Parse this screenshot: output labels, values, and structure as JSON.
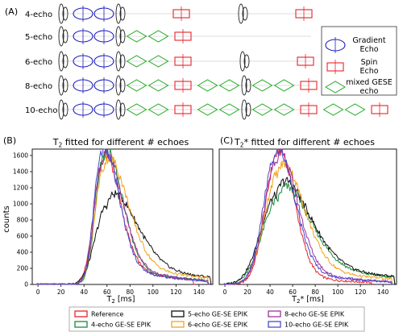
{
  "colors": {
    "gradient_echo": "#1f1fbf",
    "spin_echo": "#e8232b",
    "gese_echo": "#22aa22",
    "reference": "#e8232b",
    "echo4": "#1a8a3a",
    "echo5": "#111111",
    "echo6": "#f2a31b",
    "echo8": "#a0339a",
    "echo10": "#4a4ad0"
  },
  "panel_a": {
    "label": "(A)",
    "rows": [
      {
        "label": "4-echo",
        "seq": [
          "ge",
          "ge",
          "rf",
          "gap",
          "se",
          "gap",
          "rf",
          "gap",
          "se"
        ]
      },
      {
        "label": "5-echo",
        "seq": [
          "ge",
          "ge",
          "rf",
          "gese",
          "gese",
          "se"
        ]
      },
      {
        "label": "6-echo",
        "seq": [
          "ge",
          "ge",
          "rf",
          "gese",
          "gese",
          "se",
          "gap",
          "rf",
          "gap",
          "se"
        ]
      },
      {
        "label": "8-echo",
        "seq": [
          "ge",
          "ge",
          "rf",
          "gese",
          "gese",
          "se",
          "gese",
          "gese",
          "rf",
          "gese",
          "gese",
          "se"
        ]
      },
      {
        "label": "10-echo",
        "seq": [
          "ge",
          "ge",
          "rf",
          "gese",
          "gese",
          "se",
          "gese",
          "gese",
          "rf",
          "gese",
          "gese",
          "se",
          "gese",
          "gese",
          "se"
        ]
      }
    ],
    "legend": [
      {
        "symbol": "ge",
        "lines": [
          "Gradient",
          "Echo"
        ]
      },
      {
        "symbol": "se",
        "lines": [
          "Spin",
          "Echo"
        ]
      },
      {
        "symbol": "gese",
        "lines": [
          "mixed GESE",
          "echo"
        ]
      }
    ]
  },
  "legend_bottom": [
    {
      "name": "Reference",
      "color": "#e8232b"
    },
    {
      "name": "5-echo GE-SE EPIK",
      "color": "#111111"
    },
    {
      "name": "8-echo GE-SE EPIK",
      "color": "#a0339a"
    },
    {
      "name": "4-echo GE-SE EPIK",
      "color": "#1a8a3a"
    },
    {
      "name": "6-echo GE-SE EPIK",
      "color": "#f2a31b"
    },
    {
      "name": "10-echo GE-SE EPIK",
      "color": "#4a4ad0"
    }
  ],
  "chart_data": [
    {
      "type": "line",
      "panel_label": "(B)",
      "title_parts": [
        "T",
        "2",
        " fitted for different # echoes"
      ],
      "ylabel": "counts",
      "xlabel_parts": [
        "T",
        "2",
        " [ms]"
      ],
      "xlim": [
        -5,
        152
      ],
      "ylim": [
        0,
        1680
      ],
      "xticks": [
        0,
        20,
        40,
        60,
        80,
        100,
        120,
        140
      ],
      "yticks": [
        0,
        200,
        400,
        600,
        800,
        1000,
        1200,
        1400,
        1600
      ],
      "series": [
        {
          "name": "Reference",
          "color": "#e8232b",
          "peak_x": 56,
          "peak_y": 1510,
          "start": 24,
          "end": 135,
          "sig_l": 7.5,
          "sig_r": 14,
          "tail": 0.22
        },
        {
          "name": "4-echo GE-SE EPIK",
          "color": "#1a8a3a",
          "peak_x": 57,
          "peak_y": 1560,
          "start": 25,
          "end": 148,
          "sig_l": 7,
          "sig_r": 15,
          "tail": 0.2
        },
        {
          "name": "5-echo GE-SE EPIK",
          "color": "#111111",
          "peak_x": 60,
          "peak_y": 980,
          "start": 22,
          "end": 150,
          "sig_l": 10,
          "sig_r": 24,
          "tail": 0.3
        },
        {
          "name": "6-echo GE-SE EPIK",
          "color": "#f2a31b",
          "peak_x": 57,
          "peak_y": 1440,
          "start": 25,
          "end": 148,
          "sig_l": 7.5,
          "sig_r": 19,
          "tail": 0.25
        },
        {
          "name": "8-echo GE-SE EPIK",
          "color": "#a0339a",
          "peak_x": 56,
          "peak_y": 1530,
          "start": 25,
          "end": 148,
          "sig_l": 7,
          "sig_r": 16,
          "tail": 0.2
        },
        {
          "name": "10-echo GE-SE EPIK",
          "color": "#4a4ad0",
          "peak_x": 55,
          "peak_y": 1610,
          "start": 25,
          "end": 148,
          "sig_l": 6.5,
          "sig_r": 14,
          "tail": 0.2
        }
      ]
    },
    {
      "type": "line",
      "panel_label": "(C)",
      "title_parts": [
        "T",
        "2",
        "* fitted for different # echoes"
      ],
      "ylabel": "",
      "xlabel_parts": [
        "T",
        "2",
        "* [ms]"
      ],
      "xlim": [
        -5,
        152
      ],
      "ylim": [
        0,
        1680
      ],
      "xticks": [
        0,
        20,
        40,
        60,
        80,
        100,
        120,
        140
      ],
      "yticks": [],
      "series": [
        {
          "name": "Reference",
          "color": "#e8232b",
          "peak_x": 47,
          "peak_y": 1630,
          "start": 2,
          "end": 130,
          "sig_l": 11,
          "sig_r": 14,
          "tail": 0.1
        },
        {
          "name": "4-echo GE-SE EPIK",
          "color": "#1a8a3a",
          "peak_x": 47,
          "peak_y": 1050,
          "start": 2,
          "end": 150,
          "sig_l": 14,
          "sig_r": 26,
          "tail": 0.3
        },
        {
          "name": "5-echo GE-SE EPIK",
          "color": "#111111",
          "peak_x": 46,
          "peak_y": 1110,
          "start": 2,
          "end": 150,
          "sig_l": 14,
          "sig_r": 27,
          "tail": 0.3
        },
        {
          "name": "6-echo GE-SE EPIK",
          "color": "#f2a31b",
          "peak_x": 47,
          "peak_y": 1380,
          "start": 3,
          "end": 148,
          "sig_l": 12,
          "sig_r": 21,
          "tail": 0.22
        },
        {
          "name": "8-echo GE-SE EPIK",
          "color": "#a0339a",
          "peak_x": 46,
          "peak_y": 1560,
          "start": 3,
          "end": 148,
          "sig_l": 11,
          "sig_r": 17,
          "tail": 0.15
        },
        {
          "name": "10-echo GE-SE EPIK",
          "color": "#4a4ad0",
          "peak_x": 45,
          "peak_y": 1590,
          "start": 3,
          "end": 148,
          "sig_l": 11,
          "sig_r": 16,
          "tail": 0.15
        }
      ]
    }
  ]
}
